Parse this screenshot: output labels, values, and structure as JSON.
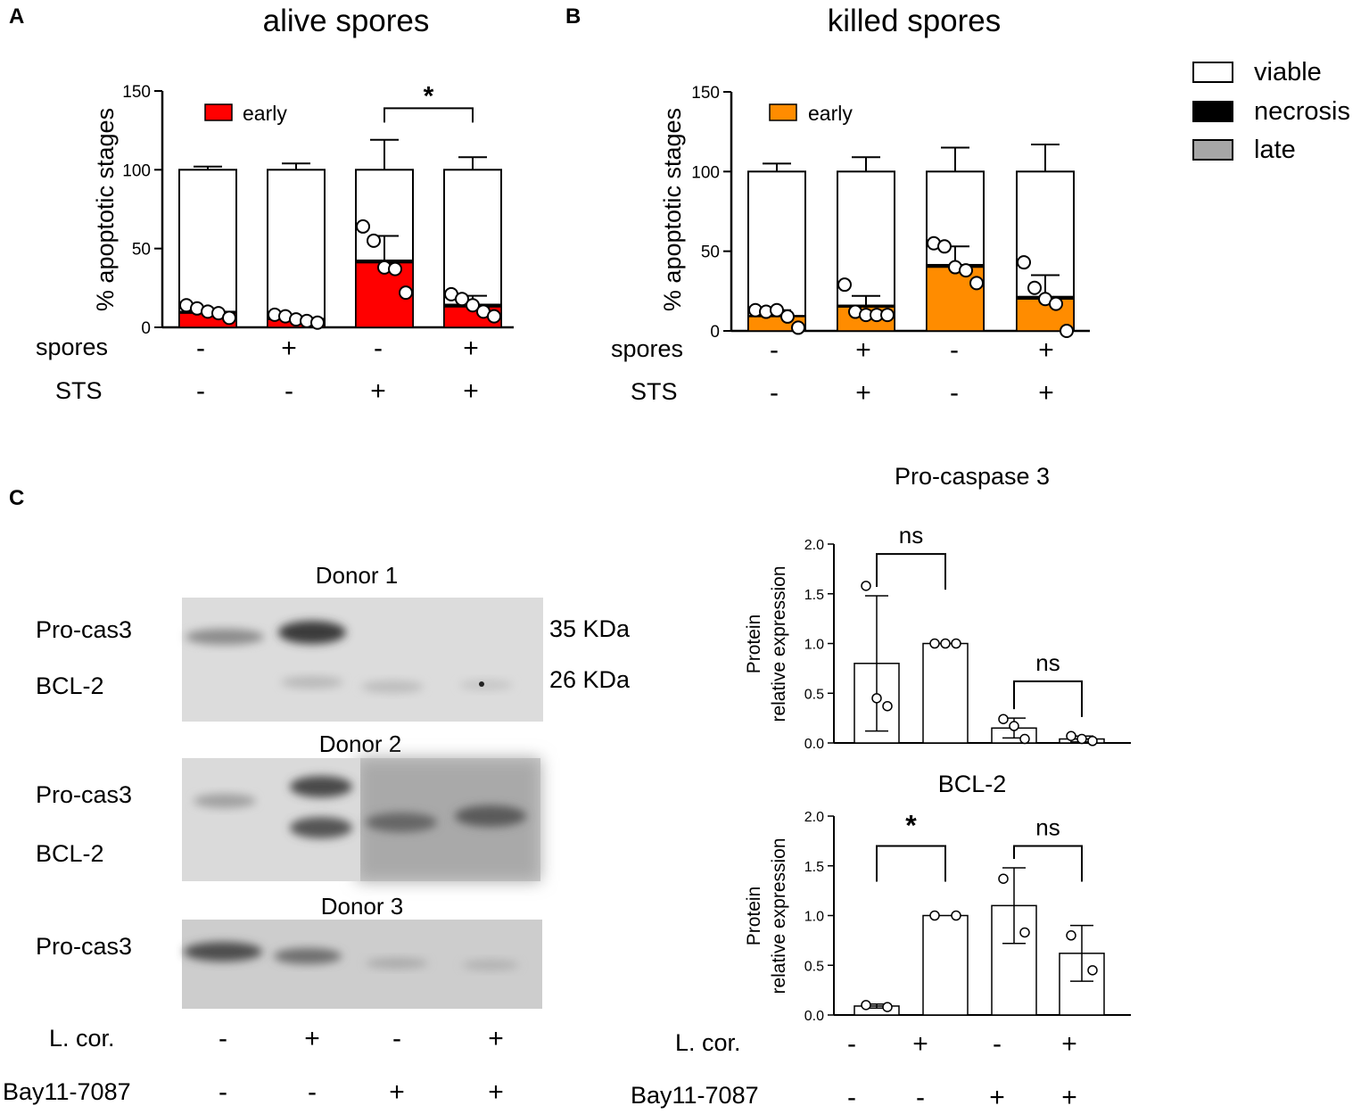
{
  "panels": {
    "A": "A",
    "B": "B",
    "C": "C"
  },
  "legend": {
    "viable": {
      "label": "viable",
      "color": "#ffffff"
    },
    "necrosis": {
      "label": "necrosis",
      "color": "#000000"
    },
    "late": {
      "label": "late",
      "color": "#a6a6a6"
    }
  },
  "colors": {
    "early_red": "#ff0000",
    "early_orange": "#ff8c00"
  },
  "blots": {
    "donor1": {
      "title": "Donor 1",
      "band1": "Pro-cas3",
      "band2": "BCL-2",
      "mw1": "35 KDa",
      "mw2": "26 KDa"
    },
    "donor2": {
      "title": "Donor 2",
      "band1": "Pro-cas3",
      "band2": "BCL-2"
    },
    "donor3": {
      "title": "Donor 3",
      "band1": "Pro-cas3"
    },
    "row1_label": "L. cor.",
    "row1_signs": [
      "-",
      "+",
      "-",
      "+"
    ],
    "row2_label": "Bay11-7087",
    "row2_signs": [
      "-",
      "-",
      "+",
      "+"
    ]
  },
  "chart_data": [
    {
      "id": "A",
      "type": "bar",
      "title": "alive spores",
      "ylabel": "% apoptotic stages",
      "ylim": [
        0,
        150
      ],
      "yticks": [
        "0",
        "50",
        "100",
        "150"
      ],
      "early_label": "early",
      "early_color": "#ff0000",
      "row1_label": "spores",
      "row1_signs": [
        "-",
        "+",
        "-",
        "+"
      ],
      "row2_label": "STS",
      "row2_signs": [
        "-",
        "-",
        "+",
        "+"
      ],
      "bars": [
        {
          "total": 100,
          "total_err": 2,
          "early": 9,
          "necrosis": 1.5,
          "early_err": 3,
          "points": [
            14,
            12,
            10,
            9,
            6
          ]
        },
        {
          "total": 100,
          "total_err": 4,
          "early": 5,
          "necrosis": 1,
          "early_err": 2,
          "points": [
            8,
            7,
            5,
            4,
            3
          ]
        },
        {
          "total": 100,
          "total_err": 19,
          "early": 41,
          "necrosis": 2,
          "early_err": 17,
          "points": [
            64,
            55,
            38,
            37,
            22
          ]
        },
        {
          "total": 100,
          "total_err": 8,
          "early": 13,
          "necrosis": 2,
          "early_err": 7,
          "points": [
            21,
            18,
            14,
            10,
            7
          ]
        }
      ],
      "significance": {
        "pair": [
          2,
          3
        ],
        "label": "*",
        "y": 139
      }
    },
    {
      "id": "B",
      "type": "bar",
      "title": "killed spores",
      "ylabel": "% apoptotic stages",
      "ylim": [
        0,
        150
      ],
      "yticks": [
        "0",
        "50",
        "100",
        "150"
      ],
      "early_label": "early",
      "early_color": "#ff8c00",
      "row1_label": "spores",
      "row1_signs": [
        "-",
        "+",
        "-",
        "+"
      ],
      "row2_label": "STS",
      "row2_signs": [
        "-",
        "+",
        "-",
        "+"
      ],
      "bars": [
        {
          "total": 100,
          "total_err": 5,
          "early": 9,
          "necrosis": 1,
          "early_err": 4,
          "points": [
            13,
            12,
            13,
            9,
            2
          ]
        },
        {
          "total": 100,
          "total_err": 9,
          "early": 15,
          "necrosis": 1.5,
          "early_err": 7,
          "points": [
            29,
            12,
            10,
            10,
            10
          ]
        },
        {
          "total": 100,
          "total_err": 15,
          "early": 40,
          "necrosis": 2,
          "early_err": 13,
          "points": [
            55,
            53,
            40,
            38,
            30
          ]
        },
        {
          "total": 100,
          "total_err": 17,
          "early": 20,
          "necrosis": 2,
          "early_err": 15,
          "points": [
            43,
            27,
            20,
            17,
            0
          ]
        }
      ]
    },
    {
      "id": "C1",
      "type": "bar",
      "title": "Pro-caspase 3",
      "ylabel_line1": "Protein",
      "ylabel_line2": "relative expression",
      "ylim": [
        0,
        2.0
      ],
      "yticks": [
        "0.0",
        "0.5",
        "1.0",
        "1.5",
        "2.0"
      ],
      "bars": [
        {
          "mean": 0.8,
          "sd": 0.68,
          "points": [
            1.58,
            0.45,
            0.37
          ]
        },
        {
          "mean": 1.0,
          "sd": 0.0,
          "points": [
            1.0,
            1.0,
            1.0
          ]
        },
        {
          "mean": 0.15,
          "sd": 0.1,
          "points": [
            0.24,
            0.17,
            0.04
          ]
        },
        {
          "mean": 0.04,
          "sd": 0.03,
          "points": [
            0.07,
            0.04,
            0.02
          ]
        }
      ],
      "significance": [
        {
          "pair": [
            0,
            1
          ],
          "label": "ns",
          "y": 1.9
        },
        {
          "pair": [
            2,
            3
          ],
          "label": "ns",
          "y": 0.62
        }
      ]
    },
    {
      "id": "C2",
      "type": "bar",
      "title": "BCL-2",
      "ylabel_line1": "Protein",
      "ylabel_line2": "relative expression",
      "ylim": [
        0,
        2.0
      ],
      "yticks": [
        "0.0",
        "0.5",
        "1.0",
        "1.5",
        "2.0"
      ],
      "row1_label": "L. cor.",
      "row1_signs": [
        "-",
        "+",
        "-",
        "+"
      ],
      "row2_label": "Bay11-7087",
      "row2_signs": [
        "-",
        "-",
        "+",
        "+"
      ],
      "bars": [
        {
          "mean": 0.09,
          "sd": 0.02,
          "points": [
            0.1,
            0.08
          ]
        },
        {
          "mean": 1.0,
          "sd": 0.0,
          "points": [
            1.0,
            1.0
          ]
        },
        {
          "mean": 1.1,
          "sd": 0.38,
          "points": [
            1.37,
            0.83
          ]
        },
        {
          "mean": 0.62,
          "sd": 0.28,
          "points": [
            0.8,
            0.45
          ]
        }
      ],
      "significance": [
        {
          "pair": [
            0,
            1
          ],
          "label": "*",
          "y": 1.7
        },
        {
          "pair": [
            2,
            3
          ],
          "label": "ns",
          "y": 1.7
        }
      ]
    }
  ]
}
